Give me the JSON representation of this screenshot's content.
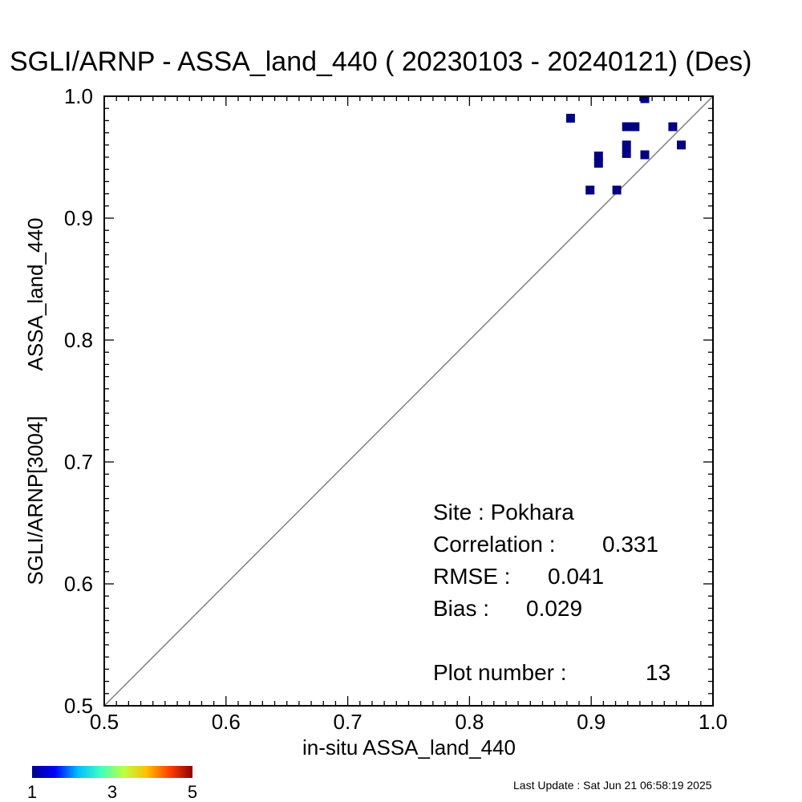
{
  "chart_data": {
    "type": "scatter",
    "title": "SGLI/ARNP - ASSA_land_440 ( 20230103 - 20240121) (Des)",
    "xlabel": "in-situ ASSA_land_440",
    "ylabel_line1": "SGLI/ARNP[3004]",
    "ylabel_line2": "ASSA_land_440",
    "xlim": [
      0.5,
      1.0
    ],
    "ylim": [
      0.5,
      1.0
    ],
    "xticks": [
      "0.5",
      "0.6",
      "0.7",
      "0.8",
      "0.9",
      "1.0"
    ],
    "yticks": [
      "0.5",
      "0.6",
      "0.7",
      "0.8",
      "0.9",
      "1.0"
    ],
    "reference_line": "1:1",
    "point_color": "#000080",
    "line_color": "#808080",
    "points": [
      {
        "x": 0.883,
        "y": 0.982
      },
      {
        "x": 0.899,
        "y": 0.923
      },
      {
        "x": 0.906,
        "y": 0.951
      },
      {
        "x": 0.906,
        "y": 0.945
      },
      {
        "x": 0.921,
        "y": 0.923
      },
      {
        "x": 0.929,
        "y": 0.975
      },
      {
        "x": 0.929,
        "y": 0.96
      },
      {
        "x": 0.929,
        "y": 0.953
      },
      {
        "x": 0.936,
        "y": 0.975
      },
      {
        "x": 0.944,
        "y": 0.998
      },
      {
        "x": 0.944,
        "y": 0.952
      },
      {
        "x": 0.967,
        "y": 0.975
      },
      {
        "x": 0.974,
        "y": 0.96
      }
    ],
    "stats": {
      "site": "Site : Pokhara",
      "correlation_label": "Correlation :",
      "correlation_value": "0.331",
      "rmse_label": "RMSE :",
      "rmse_value": "0.041",
      "bias_label": "Bias :",
      "bias_value": "0.029",
      "plot_number_label": "Plot number :",
      "plot_number_value": "13"
    },
    "colorbar": {
      "ticks": [
        "1",
        "3",
        "5"
      ],
      "colors": [
        "#00008f",
        "#0000ff",
        "#00bfff",
        "#40ffbf",
        "#bfff40",
        "#ffbf00",
        "#ff4000",
        "#8f0000"
      ]
    }
  },
  "footer": {
    "last_update": "Last Update : Sat Jun 21 06:58:19 2025"
  }
}
